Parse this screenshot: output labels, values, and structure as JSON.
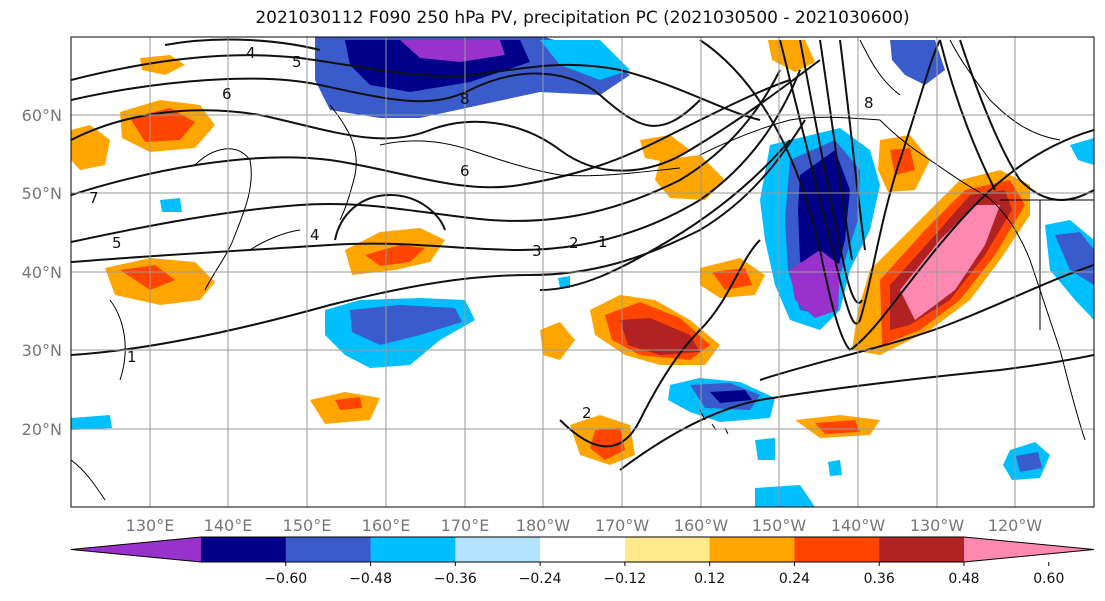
{
  "title": "2021030112 F090 250 hPa PV, precipitation PC (2021030500 - 2021030600)",
  "map": {
    "lat_labels": [
      "60°N",
      "50°N",
      "40°N",
      "30°N",
      "20°N"
    ],
    "lon_labels": [
      "130°E",
      "140°E",
      "150°E",
      "160°E",
      "170°E",
      "180°W",
      "170°W",
      "160°W",
      "150°W",
      "140°W",
      "130°W",
      "120°W"
    ],
    "pv_contour_labels": [
      "4",
      "5",
      "6",
      "8",
      "8",
      "6",
      "7",
      "4",
      "5",
      "3",
      "2",
      "1",
      "1",
      "2"
    ]
  },
  "colorbar": {
    "ticks": [
      "−0.60",
      "−0.48",
      "−0.36",
      "−0.24",
      "−0.12",
      "0.12",
      "0.24",
      "0.36",
      "0.48",
      "0.60"
    ],
    "colors": [
      "#9932cc",
      "#00008b",
      "#3a5bcc",
      "#00bfff",
      "#b3e3ff",
      "#ffffff",
      "#ffe98a",
      "#ffa500",
      "#ff4500",
      "#b22222",
      "#ff88b0"
    ]
  }
}
